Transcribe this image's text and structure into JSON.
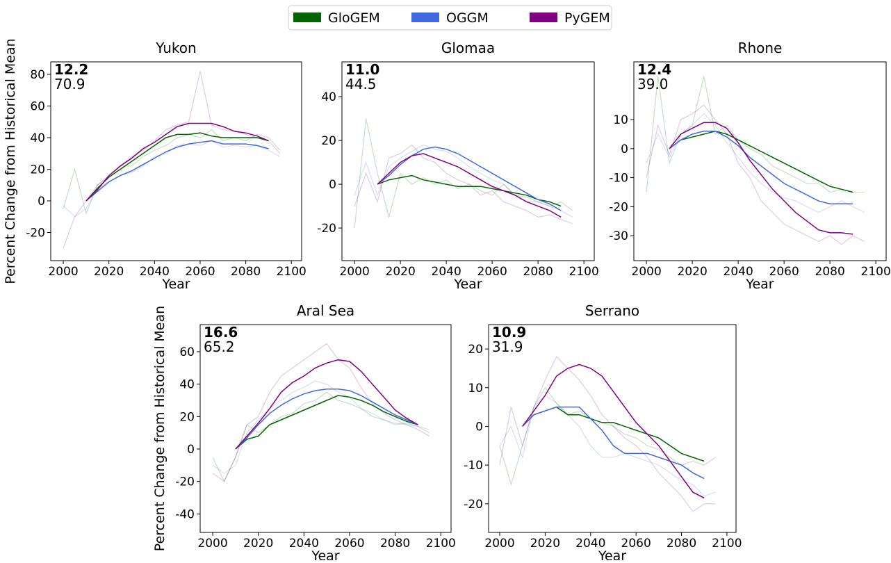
{
  "legend_position": "upper center",
  "chart_data": [
    {
      "type": "line",
      "title": "Yukon",
      "xlabel": "Year",
      "ylabel": "Percent Change from Historical Mean",
      "annotations": [
        "12.2",
        "70.9"
      ],
      "xlim": [
        1994.5,
        2104.5
      ],
      "ylim": [
        -37.8,
        87.9
      ],
      "xticks": [
        2000,
        2020,
        2040,
        2060,
        2080,
        2100
      ],
      "yticks": [
        -20,
        0,
        20,
        40,
        60,
        80
      ],
      "x": [
        2010,
        2015,
        2020,
        2025,
        2030,
        2035,
        2040,
        2045,
        2050,
        2055,
        2060,
        2065,
        2070,
        2075,
        2080,
        2085,
        2090
      ],
      "series": [
        {
          "name": "GloGEM",
          "color": "#006400",
          "values": [
            0,
            8,
            15,
            20,
            25,
            30,
            35,
            40,
            42,
            42,
            43,
            41,
            40,
            40,
            40,
            40,
            38
          ]
        },
        {
          "name": "OGGM",
          "color": "#4169e1",
          "values": [
            0,
            6,
            12,
            16,
            19,
            23,
            27,
            31,
            34,
            36,
            37,
            38,
            36,
            36,
            36,
            35,
            33
          ]
        },
        {
          "name": "PyGEM",
          "color": "#800080",
          "values": [
            0,
            7,
            16,
            22,
            27,
            33,
            37,
            42,
            47,
            49,
            49,
            49,
            47,
            44,
            43,
            41,
            38
          ]
        }
      ],
      "raw_x": [
        2000,
        2005,
        2010,
        2015,
        2020,
        2025,
        2030,
        2035,
        2040,
        2045,
        2050,
        2055,
        2060,
        2065,
        2070,
        2075,
        2080,
        2085,
        2090,
        2095
      ],
      "raw_series": [
        {
          "color": "#006400",
          "values": [
            -5,
            20,
            -8,
            10,
            15,
            22,
            22,
            28,
            32,
            35,
            40,
            42,
            40,
            45,
            38,
            40,
            38,
            42,
            40,
            32
          ]
        },
        {
          "color": "#4169e1",
          "values": [
            -3,
            -10,
            -5,
            8,
            12,
            16,
            18,
            22,
            28,
            30,
            35,
            36,
            35,
            38,
            34,
            35,
            34,
            35,
            32,
            28
          ]
        },
        {
          "color": "#800080",
          "values": [
            -30,
            -10,
            0,
            10,
            16,
            22,
            28,
            32,
            38,
            45,
            48,
            50,
            82,
            48,
            45,
            44,
            42,
            40,
            38,
            30
          ]
        }
      ]
    },
    {
      "type": "line",
      "title": "Glomaa",
      "xlabel": "Year",
      "annotations": [
        "11.0",
        "44.5"
      ],
      "xlim": [
        1994.5,
        2104.5
      ],
      "ylim": [
        -34.9,
        55.9
      ],
      "xticks": [
        2000,
        2020,
        2040,
        2060,
        2080,
        2100
      ],
      "yticks": [
        -20,
        0,
        20,
        40
      ],
      "x": [
        2010,
        2015,
        2020,
        2025,
        2030,
        2035,
        2040,
        2045,
        2050,
        2055,
        2060,
        2065,
        2070,
        2075,
        2080,
        2085,
        2090
      ],
      "series": [
        {
          "name": "GloGEM",
          "color": "#006400",
          "values": [
            0,
            2,
            3,
            4,
            2,
            1,
            0,
            -1,
            -1,
            -1,
            -2,
            -3,
            -4,
            -5,
            -7,
            -8,
            -10
          ]
        },
        {
          "name": "OGGM",
          "color": "#4169e1",
          "values": [
            0,
            4,
            9,
            13,
            16,
            17,
            16,
            14,
            11,
            8,
            5,
            2,
            -1,
            -4,
            -7,
            -9,
            -12
          ]
        },
        {
          "name": "PyGEM",
          "color": "#800080",
          "values": [
            0,
            5,
            10,
            13,
            14,
            12,
            10,
            8,
            5,
            2,
            -1,
            -3,
            -5,
            -8,
            -10,
            -12,
            -15
          ]
        }
      ],
      "raw_x": [
        2000,
        2005,
        2010,
        2015,
        2020,
        2025,
        2030,
        2035,
        2040,
        2045,
        2050,
        2055,
        2060,
        2065,
        2070,
        2075,
        2080,
        2085,
        2090,
        2095
      ],
      "raw_series": [
        {
          "color": "#006400",
          "values": [
            -20,
            30,
            5,
            -15,
            5,
            0,
            3,
            0,
            2,
            -2,
            0,
            -3,
            -5,
            0,
            -5,
            -6,
            -8,
            -10,
            -8,
            -12
          ]
        },
        {
          "color": "#4169e1",
          "values": [
            -5,
            10,
            -5,
            8,
            12,
            15,
            18,
            16,
            15,
            12,
            8,
            5,
            2,
            0,
            -5,
            -8,
            -8,
            -10,
            -12,
            -15
          ]
        },
        {
          "color": "#800080",
          "values": [
            -10,
            5,
            -8,
            12,
            14,
            18,
            12,
            10,
            5,
            2,
            0,
            -5,
            -3,
            -8,
            -10,
            -12,
            -15,
            -14,
            -16,
            -18
          ]
        }
      ]
    },
    {
      "type": "line",
      "title": "Rhone",
      "xlabel": "Year",
      "annotations": [
        "12.4",
        "39.0"
      ],
      "xlim": [
        1994.5,
        2104.5
      ],
      "ylim": [
        -38.6,
        29.9
      ],
      "xticks": [
        2000,
        2020,
        2040,
        2060,
        2080,
        2100
      ],
      "yticks": [
        -30,
        -20,
        -10,
        0,
        10
      ],
      "x": [
        2010,
        2015,
        2020,
        2025,
        2030,
        2035,
        2040,
        2045,
        2050,
        2055,
        2060,
        2065,
        2070,
        2075,
        2080,
        2085,
        2090
      ],
      "series": [
        {
          "name": "GloGEM",
          "color": "#006400",
          "values": [
            0,
            3,
            4,
            5,
            6,
            5,
            3,
            1,
            -1,
            -3,
            -5,
            -7,
            -9,
            -11,
            -13,
            -14,
            -15
          ]
        },
        {
          "name": "OGGM",
          "color": "#4169e1",
          "values": [
            0,
            3,
            5,
            6,
            6,
            4,
            1,
            -3,
            -6,
            -9,
            -12,
            -14,
            -16,
            -18,
            -19,
            -19,
            -19
          ]
        },
        {
          "name": "PyGEM",
          "color": "#800080",
          "values": [
            0,
            5,
            7,
            9,
            9,
            7,
            2,
            -4,
            -9,
            -14,
            -18,
            -22,
            -25,
            -28,
            -29,
            -29,
            -29.5
          ]
        }
      ],
      "raw_x": [
        2000,
        2005,
        2010,
        2015,
        2020,
        2025,
        2030,
        2035,
        2040,
        2045,
        2050,
        2055,
        2060,
        2065,
        2070,
        2075,
        2080,
        2085,
        2090,
        2095
      ],
      "raw_series": [
        {
          "color": "#006400",
          "values": [
            -15,
            25,
            -5,
            5,
            8,
            25,
            5,
            8,
            3,
            0,
            -2,
            -6,
            -8,
            -10,
            -12,
            -12,
            -15,
            -14,
            -15,
            -15
          ]
        },
        {
          "color": "#4169e1",
          "values": [
            -5,
            5,
            -3,
            5,
            8,
            12,
            8,
            2,
            -3,
            -8,
            -12,
            -15,
            -17,
            -18,
            -20,
            -22,
            -20,
            -18,
            -20,
            -22
          ]
        },
        {
          "color": "#800080",
          "values": [
            -10,
            8,
            -2,
            10,
            12,
            15,
            10,
            5,
            -5,
            -10,
            -18,
            -22,
            -26,
            -28,
            -30,
            -32,
            -30,
            -33,
            -30,
            -32
          ]
        }
      ]
    },
    {
      "type": "line",
      "title": "Aral Sea",
      "xlabel": "Year",
      "ylabel": "Percent Change from Historical Mean",
      "annotations": [
        "16.6",
        "65.2"
      ],
      "xlim": [
        1994.5,
        2104.5
      ],
      "ylim": [
        -51.4,
        76.7
      ],
      "xticks": [
        2000,
        2020,
        2040,
        2060,
        2080,
        2100
      ],
      "yticks": [
        -40,
        -20,
        0,
        20,
        40,
        60
      ],
      "x": [
        2010,
        2015,
        2020,
        2025,
        2030,
        2035,
        2040,
        2045,
        2050,
        2055,
        2060,
        2065,
        2070,
        2075,
        2080,
        2085,
        2090
      ],
      "series": [
        {
          "name": "GloGEM",
          "color": "#006400",
          "values": [
            0,
            6,
            8,
            15,
            18,
            21,
            24,
            27,
            30,
            33,
            32,
            30,
            27,
            23,
            20,
            17,
            15
          ]
        },
        {
          "name": "OGGM",
          "color": "#4169e1",
          "values": [
            0,
            7,
            15,
            22,
            27,
            31,
            34,
            36,
            37,
            37,
            36,
            33,
            29,
            25,
            21,
            18,
            15
          ]
        },
        {
          "name": "PyGEM",
          "color": "#800080",
          "values": [
            0,
            8,
            16,
            25,
            35,
            41,
            45,
            50,
            53,
            55,
            54,
            48,
            40,
            32,
            24,
            19,
            15
          ]
        }
      ],
      "raw_x": [
        2000,
        2005,
        2010,
        2015,
        2020,
        2025,
        2030,
        2035,
        2040,
        2045,
        2050,
        2055,
        2060,
        2065,
        2070,
        2075,
        2080,
        2085,
        2090,
        2095
      ],
      "raw_series": [
        {
          "color": "#006400",
          "values": [
            -5,
            -20,
            -5,
            15,
            10,
            15,
            20,
            22,
            28,
            30,
            35,
            30,
            28,
            25,
            20,
            18,
            15,
            16,
            14,
            10
          ]
        },
        {
          "color": "#4169e1",
          "values": [
            -10,
            -15,
            -10,
            10,
            18,
            25,
            30,
            35,
            38,
            42,
            40,
            35,
            32,
            25,
            22,
            18,
            16,
            15,
            14,
            12
          ]
        },
        {
          "color": "#800080",
          "values": [
            -15,
            -20,
            -5,
            15,
            20,
            35,
            45,
            50,
            55,
            60,
            65,
            55,
            50,
            38,
            28,
            22,
            18,
            15,
            12,
            8
          ]
        }
      ]
    },
    {
      "type": "line",
      "title": "Serrano",
      "xlabel": "Year",
      "annotations": [
        "10.9",
        "31.9"
      ],
      "xlim": [
        1995.1,
        2104
      ],
      "ylim": [
        -27.4,
        26.3
      ],
      "xticks": [
        2000,
        2020,
        2040,
        2060,
        2080,
        2100
      ],
      "yticks": [
        -20,
        -10,
        0,
        10,
        20
      ],
      "x": [
        2010,
        2015,
        2020,
        2025,
        2030,
        2035,
        2040,
        2045,
        2050,
        2055,
        2060,
        2065,
        2070,
        2075,
        2080,
        2085,
        2090
      ],
      "series": [
        {
          "name": "GloGEM",
          "color": "#006400",
          "values": [
            0,
            3,
            4,
            5,
            3,
            3,
            2,
            1,
            1,
            0,
            -1,
            -2,
            -3,
            -5,
            -7,
            -8,
            -9
          ]
        },
        {
          "name": "OGGM",
          "color": "#4169e1",
          "values": [
            0,
            3,
            4,
            5,
            5,
            5,
            2,
            -1,
            -5,
            -7,
            -7,
            -7,
            -8,
            -9,
            -10,
            -12,
            -13.5
          ]
        },
        {
          "name": "PyGEM",
          "color": "#800080",
          "values": [
            0,
            4,
            8,
            13,
            15,
            16,
            15,
            13,
            9,
            5,
            1,
            -2,
            -5,
            -9,
            -13,
            -17,
            -18.5
          ]
        }
      ],
      "raw_x": [
        2000,
        2005,
        2010,
        2015,
        2020,
        2025,
        2030,
        2035,
        2040,
        2045,
        2050,
        2055,
        2060,
        2065,
        2070,
        2075,
        2080,
        2085,
        2090,
        2095
      ],
      "raw_series": [
        {
          "color": "#006400",
          "values": [
            -5,
            -15,
            -5,
            5,
            10,
            6,
            3,
            4,
            2,
            1,
            0,
            -2,
            -3,
            -5,
            -6,
            -8,
            -10,
            -9,
            -10,
            -8
          ]
        },
        {
          "color": "#4169e1",
          "values": [
            -5,
            0,
            -8,
            5,
            8,
            6,
            3,
            0,
            -5,
            -8,
            -8,
            -7,
            -8,
            -9,
            -10,
            -12,
            -14,
            -15,
            -18,
            -17
          ]
        },
        {
          "color": "#800080",
          "values": [
            -10,
            5,
            -5,
            5,
            12,
            18,
            15,
            12,
            8,
            3,
            0,
            -3,
            -5,
            -8,
            -12,
            -15,
            -18,
            -22,
            -20,
            -20
          ]
        }
      ]
    }
  ]
}
